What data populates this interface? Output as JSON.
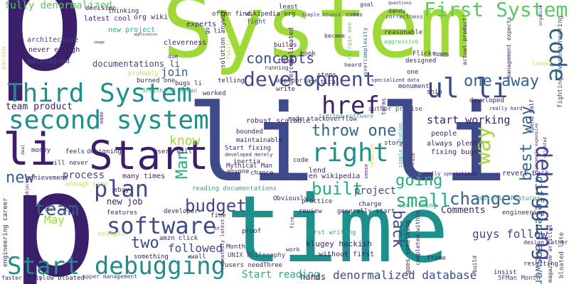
{
  "colors": {
    "dark_purple": "#3b1f6b",
    "indigo": "#3e4a89",
    "blue": "#33628d",
    "teal": "#1f8f8b",
    "sea": "#27ad81",
    "green": "#5cc863",
    "lime": "#9fd938",
    "yellow": "#d6e22b"
  },
  "words": {
    "p_top": "p",
    "system_big": "System",
    "li_mid": "li li",
    "p_bottom": "p",
    "time": "time",
    "start": "Start",
    "li_left": "li",
    "third_system": "Third System",
    "second_system": "second system",
    "start_debugging": "Start debugging",
    "software": "software",
    "first_system": "First System",
    "code": "code",
    "debugging": "debugging",
    "right": "right",
    "href": "href",
    "ul_li": "ul li",
    "development": "development",
    "plan": "plan",
    "budget": "budget",
    "small": "small",
    "changes": "changes",
    "way": "way",
    "one_away": "one away",
    "throw_one": "throw one",
    "team": "team",
    "new": "new",
    "built": "built",
    "going": "going",
    "concepts": "concepts",
    "back": "back",
    "two": "two",
    "man": "Man",
    "best_way": "best way",
    "fully_denormalized": "fully denormalized",
    "denormalized_database": "denormalized database",
    "start_reading": "Start reading",
    "team_product": "team product",
    "may": "May",
    "followed": "followed",
    "process": "process",
    "know": "know",
    "different_answers": "different answers",
    "guys_follow": "guys follow",
    "project": "project",
    "start_working": "start working",
    "comments": "Comments",
    "join": "join",
    "documentations_li": "documentations li",
    "new_job": "new job",
    "architecture": "architecture",
    "never_enough": "never enough",
    "maintained": "maintained",
    "latest_cool": "latest cool",
    "org_wiki": "org wiki",
    "thinking": "thinking",
    "new_project": "new project",
    "cleverness": "cleverness",
    "experts": "experts",
    "often_find": "often find",
    "wikipedia_org": "wikipedia org",
    "fight": "fight",
    "least": "least",
    "simple_stupid": "Simple Stupid",
    "comes": "comes",
    "goal": "goal",
    "questions": "questions",
    "dandy": "dandy",
    "correctness": "correctness",
    "reasonable": "reasonable",
    "aggressive": "aggressive",
    "flickr": "Flickr",
    "rdbms": "RDBMS",
    "designed": "designed",
    "heard": "heard",
    "overcomplicated": "overcomplicated",
    "book": "book",
    "became": "became",
    "builds": "builds",
    "running": "running",
    "take": "take",
    "solution_anyway": "solution anyway",
    "familiar": "familiar",
    "telling": "telling",
    "worked": "worked",
    "probably": "probably",
    "burned_one": "burned one",
    "bugs_li": "bugs li",
    "due": "due",
    "mythical": "5FMythical 5FMan",
    "steps": "steps",
    "appropriate": "appropriate",
    "critical": "critical",
    "write": "write",
    "specialized_data": "specialized data",
    "monument": "monument",
    "author_premise": "author premise",
    "developed": "developed",
    "really_hard": "really hard",
    "ship": "ship",
    "limited_software": "limited software",
    "rads_stackoverflow": "rads stackoverflow",
    "robust_scalable": "robust scalable",
    "bounded": "bounded",
    "maintainable": "maintainable",
    "start_fixing": "Start fixing",
    "developed_merely": "developed merely",
    "inertia": "inertia",
    "mythical_man": "Mythical Man",
    "anyone": "anyone",
    "chance": "chance",
    "story": "story",
    "always_plenty": "always plenty",
    "fixing_bugs": "fixing bugs",
    "people": "people",
    "lend": "lend",
    "en_wikipedia": "en wikipedia",
    "code_small": "code",
    "sense": "sense",
    "relative": "relative",
    "really_specialized": "really specialized",
    "revert_back": "revert back",
    "esoteric_features": "esoteric features",
    "cool_thing": "cool thing",
    "charge": "charge",
    "generally_start": "generally start",
    "review": "review",
    "practice": "practice",
    "obviously": "Obviously",
    "reading_documentations": "reading documentations",
    "ebay": "ebay",
    "many_times": "many times",
    "enough_time": "enough time",
    "money": "money",
    "feels": "feels",
    "designing": "designing",
    "users_will": "users will",
    "will_never": "will never",
    "achievement": "achievement",
    "features": "features",
    "developer": "developer",
    "amzn_click": "amzn click",
    "wall": "wall",
    "something": "something",
    "example": "example",
    "test_cycle": "test cycle",
    "engineering_career": "engineering career",
    "upper_management": "upper management",
    "slow_bloated": "slow bloated",
    "faster_fully": "faster fully",
    "hands": "hands",
    "three": "Three",
    "users_need": "users need",
    "unix_philosophy": "UNIX Philosophy",
    "month": "Month",
    "first_writing": "first writing",
    "klugey_hackish": "klugey hackish",
    "without_first": "without first",
    "work": "work",
    "5fman_month": "5FMan Month",
    "frame": "frame",
    "resulting": "resulting",
    "insist": "insist",
    "design_rather": "design rather",
    "engineering": "engineering",
    "fine": "fine",
    "proof": "proof",
    "hr": "hr",
    "decision": "decision",
    "li_tiny": "li",
    "one": "one",
    "latest": "latest",
    "parson": "parson",
    "application": "application",
    "image": "image",
    "organize": "organize",
    "fighting_overengineering": "fighting overengineering",
    "bloated_late": "bloated late",
    "management_expects": "management expects",
    "actual_product": "actual product",
    "refrain_men": "refrain men",
    "overcomplexity": "overcomplexity",
    "deal": "deal",
    "object": "object",
    "made": "made",
    "go": "go",
    "terms": "terms",
    "spend_half": "spend half",
    "extremely_expensive": "extremely expensive",
    "oriented": "oriented",
    "rule": "rule",
    "goes_something": "goes something",
    "completed_within": "completed within",
    "repeatedly_latest": "repeatedly latest",
    "simple_solution": "simple solution",
    "magazine_articles": "magazine articles",
    "fire": "fire",
    "build": "build"
  }
}
